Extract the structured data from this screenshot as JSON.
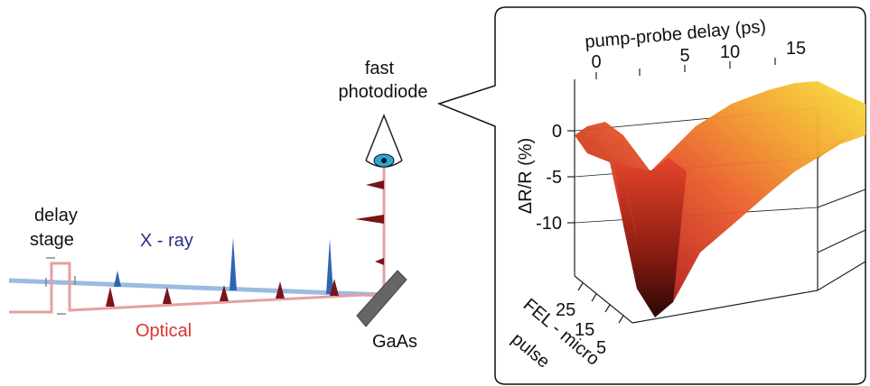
{
  "labels": {
    "delay_stage": [
      "delay",
      "stage"
    ],
    "xray": "X - ray",
    "optical": "Optical",
    "photodiode": [
      "fast",
      "photodiode"
    ],
    "sample": "GaAs"
  },
  "inset": {
    "x_axis": {
      "label": "pump-probe delay (ps)",
      "ticks": [
        "0",
        "5",
        "10",
        "15"
      ]
    },
    "y_axis": {
      "label": "ΔR/R (%)",
      "ticks": [
        "0",
        "-5",
        "-10"
      ]
    },
    "z_axis": {
      "label": [
        "FEL - micro",
        "pulse"
      ],
      "ticks": [
        "25",
        "15",
        "5"
      ]
    }
  }
}
